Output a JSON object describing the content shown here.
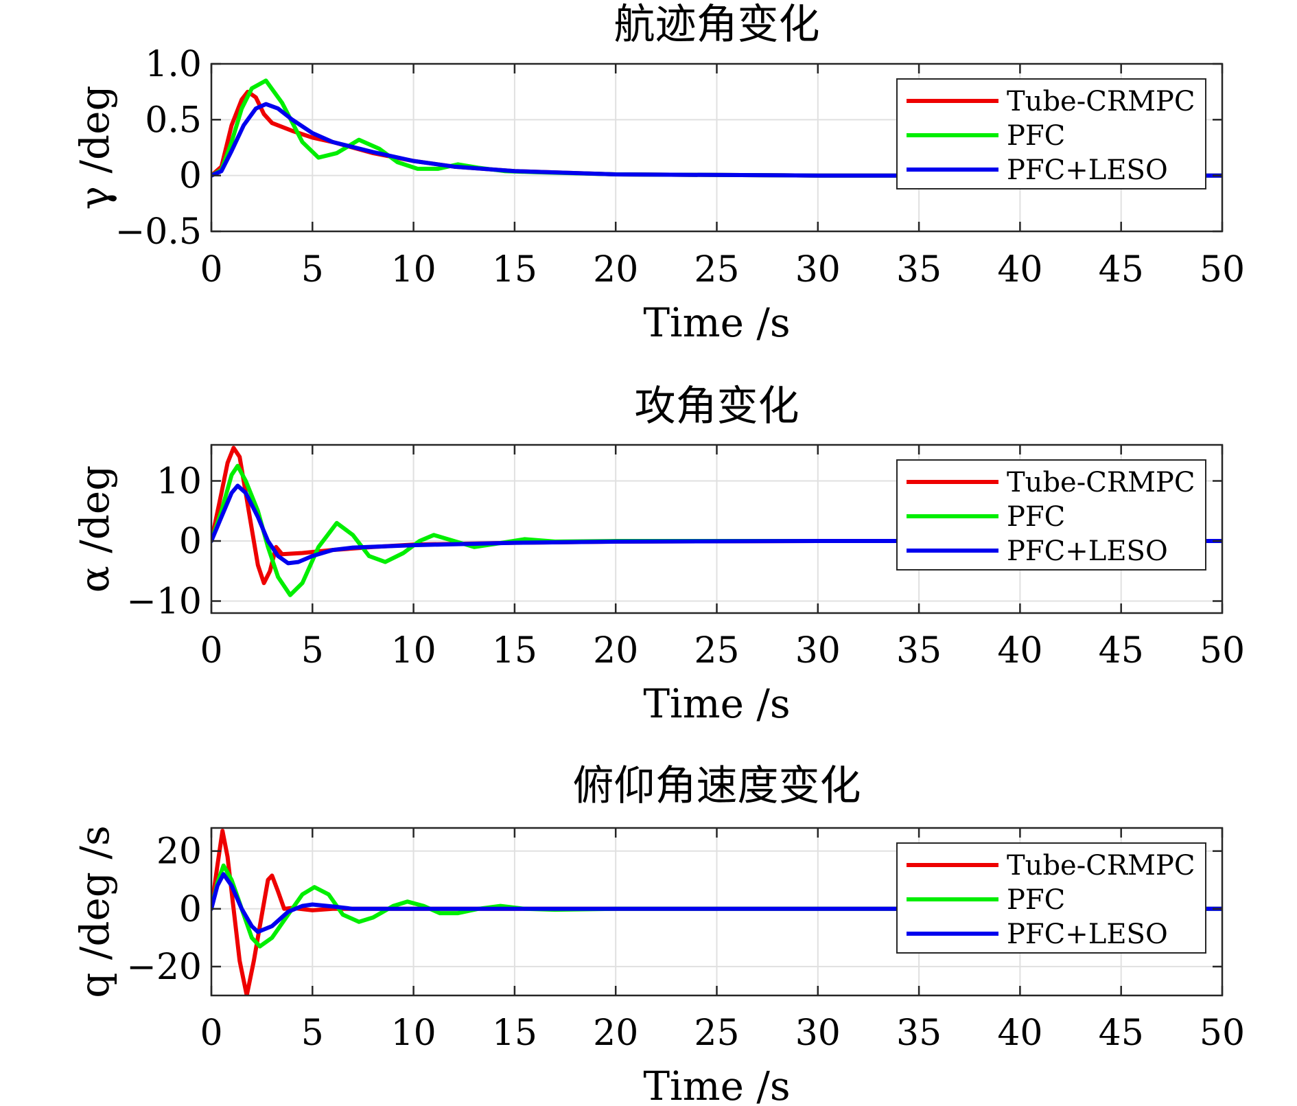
{
  "colors": {
    "Tube-CRMPC": "#ee0000",
    "PFC": "#00ee00",
    "PFC+LESO": "#0000ee"
  },
  "chart_data": [
    {
      "type": "line",
      "title": "航迹角变化",
      "xlabel": "Time /s",
      "ylabel": "γ /deg",
      "xlim": [
        0,
        50
      ],
      "ylim": [
        -0.5,
        1.0
      ],
      "xticks": [
        0,
        5,
        10,
        15,
        20,
        25,
        30,
        35,
        40,
        45,
        50
      ],
      "xtick_labels": [
        "0",
        "5",
        "10",
        "15",
        "20",
        "25",
        "30",
        "35",
        "40",
        "45",
        "50"
      ],
      "yticks": [
        -0.5,
        0,
        0.5,
        1.0
      ],
      "ytick_labels": [
        "−0.5",
        "0",
        "0.5",
        "1.0"
      ],
      "legend": [
        "Tube-CRMPC",
        "PFC",
        "PFC+LESO"
      ],
      "legend_position": "top-right",
      "series": [
        {
          "name": "Tube-CRMPC",
          "points": [
            [
              0,
              0
            ],
            [
              0.5,
              0.08
            ],
            [
              1,
              0.45
            ],
            [
              1.5,
              0.68
            ],
            [
              1.8,
              0.75
            ],
            [
              2.2,
              0.7
            ],
            [
              2.6,
              0.55
            ],
            [
              3,
              0.47
            ],
            [
              4,
              0.4
            ],
            [
              5,
              0.34
            ],
            [
              6,
              0.3
            ],
            [
              8,
              0.2
            ],
            [
              10,
              0.13
            ],
            [
              12,
              0.08
            ],
            [
              15,
              0.04
            ],
            [
              20,
              0.01
            ],
            [
              30,
              0
            ],
            [
              50,
              0
            ]
          ]
        },
        {
          "name": "PFC",
          "points": [
            [
              0,
              0
            ],
            [
              0.5,
              0.05
            ],
            [
              1,
              0.3
            ],
            [
              1.5,
              0.6
            ],
            [
              2,
              0.78
            ],
            [
              2.7,
              0.85
            ],
            [
              3.5,
              0.65
            ],
            [
              4.5,
              0.3
            ],
            [
              5.3,
              0.16
            ],
            [
              6.2,
              0.2
            ],
            [
              7.3,
              0.32
            ],
            [
              8.3,
              0.24
            ],
            [
              9.2,
              0.12
            ],
            [
              10.2,
              0.06
            ],
            [
              11.2,
              0.06
            ],
            [
              12.2,
              0.1
            ],
            [
              13.2,
              0.07
            ],
            [
              14.5,
              0.04
            ],
            [
              16,
              0.03
            ],
            [
              20,
              0.01
            ],
            [
              30,
              0
            ],
            [
              50,
              0
            ]
          ]
        },
        {
          "name": "PFC+LESO",
          "points": [
            [
              0,
              0
            ],
            [
              0.5,
              0.04
            ],
            [
              1,
              0.22
            ],
            [
              1.6,
              0.45
            ],
            [
              2.2,
              0.6
            ],
            [
              2.7,
              0.64
            ],
            [
              3.3,
              0.6
            ],
            [
              4,
              0.5
            ],
            [
              5,
              0.38
            ],
            [
              6,
              0.3
            ],
            [
              8,
              0.21
            ],
            [
              10,
              0.13
            ],
            [
              12,
              0.08
            ],
            [
              15,
              0.04
            ],
            [
              20,
              0.01
            ],
            [
              30,
              0
            ],
            [
              50,
              0
            ]
          ]
        }
      ]
    },
    {
      "type": "line",
      "title": "攻角变化",
      "xlabel": "Time /s",
      "ylabel": "α /deg",
      "xlim": [
        0,
        50
      ],
      "ylim": [
        -12,
        16
      ],
      "xticks": [
        0,
        5,
        10,
        15,
        20,
        25,
        30,
        35,
        40,
        45,
        50
      ],
      "xtick_labels": [
        "0",
        "5",
        "10",
        "15",
        "20",
        "25",
        "30",
        "35",
        "40",
        "45",
        "50"
      ],
      "yticks": [
        -10,
        0,
        10
      ],
      "ytick_labels": [
        "−10",
        "0",
        "10"
      ],
      "legend": [
        "Tube-CRMPC",
        "PFC",
        "PFC+LESO"
      ],
      "legend_position": "top-right",
      "series": [
        {
          "name": "Tube-CRMPC",
          "points": [
            [
              0,
              0
            ],
            [
              0.5,
              8
            ],
            [
              0.8,
              13
            ],
            [
              1.1,
              15.5
            ],
            [
              1.4,
              14
            ],
            [
              1.7,
              8
            ],
            [
              2,
              2
            ],
            [
              2.3,
              -4
            ],
            [
              2.6,
              -7
            ],
            [
              2.9,
              -5
            ],
            [
              3.2,
              -1
            ],
            [
              3.5,
              -2.2
            ],
            [
              4.5,
              -2
            ],
            [
              6,
              -1.5
            ],
            [
              8,
              -1
            ],
            [
              10,
              -0.6
            ],
            [
              15,
              -0.3
            ],
            [
              20,
              -0.1
            ],
            [
              30,
              0
            ],
            [
              50,
              0
            ]
          ]
        },
        {
          "name": "PFC",
          "points": [
            [
              0,
              0
            ],
            [
              0.5,
              5
            ],
            [
              1,
              11
            ],
            [
              1.3,
              12.5
            ],
            [
              1.7,
              10
            ],
            [
              2.3,
              5
            ],
            [
              2.8,
              -1
            ],
            [
              3.3,
              -6
            ],
            [
              3.9,
              -9
            ],
            [
              4.5,
              -7
            ],
            [
              5.3,
              -1
            ],
            [
              6.2,
              3
            ],
            [
              7,
              1
            ],
            [
              7.8,
              -2.5
            ],
            [
              8.6,
              -3.5
            ],
            [
              9.5,
              -2
            ],
            [
              10.3,
              0
            ],
            [
              11,
              1
            ],
            [
              12,
              0
            ],
            [
              13,
              -1
            ],
            [
              14,
              -0.5
            ],
            [
              15.5,
              0.3
            ],
            [
              17,
              -0.1
            ],
            [
              20,
              0
            ],
            [
              50,
              0
            ]
          ]
        },
        {
          "name": "PFC+LESO",
          "points": [
            [
              0,
              0
            ],
            [
              0.5,
              4
            ],
            [
              1,
              8
            ],
            [
              1.3,
              9.2
            ],
            [
              1.7,
              8
            ],
            [
              2.3,
              4
            ],
            [
              2.8,
              0
            ],
            [
              3.3,
              -2.5
            ],
            [
              3.8,
              -3.7
            ],
            [
              4.3,
              -3.5
            ],
            [
              5,
              -2.5
            ],
            [
              6,
              -1.5
            ],
            [
              7,
              -1.1
            ],
            [
              10,
              -0.7
            ],
            [
              15,
              -0.3
            ],
            [
              20,
              -0.1
            ],
            [
              30,
              0
            ],
            [
              50,
              0
            ]
          ]
        }
      ]
    },
    {
      "type": "line",
      "title": "俯仰角速度变化",
      "xlabel": "Time /s",
      "ylabel": "q /deg /s",
      "xlim": [
        0,
        50
      ],
      "ylim": [
        -30,
        28
      ],
      "xticks": [
        0,
        5,
        10,
        15,
        20,
        25,
        30,
        35,
        40,
        45,
        50
      ],
      "xtick_labels": [
        "0",
        "5",
        "10",
        "15",
        "20",
        "25",
        "30",
        "35",
        "40",
        "45",
        "50"
      ],
      "yticks": [
        -20,
        0,
        20
      ],
      "ytick_labels": [
        "−20",
        "0",
        "20"
      ],
      "legend": [
        "Tube-CRMPC",
        "PFC",
        "PFC+LESO"
      ],
      "legend_position": "top-right",
      "series": [
        {
          "name": "Tube-CRMPC",
          "points": [
            [
              0,
              0
            ],
            [
              0.3,
              15
            ],
            [
              0.55,
              27
            ],
            [
              0.8,
              18
            ],
            [
              1.1,
              0
            ],
            [
              1.4,
              -18
            ],
            [
              1.75,
              -30
            ],
            [
              2.1,
              -18
            ],
            [
              2.5,
              -2
            ],
            [
              2.8,
              10
            ],
            [
              3,
              11.5
            ],
            [
              3.3,
              6
            ],
            [
              3.6,
              0
            ],
            [
              4,
              0.3
            ],
            [
              5,
              -0.5
            ],
            [
              6,
              0
            ],
            [
              50,
              0
            ]
          ]
        },
        {
          "name": "PFC",
          "points": [
            [
              0,
              0
            ],
            [
              0.3,
              9
            ],
            [
              0.6,
              15
            ],
            [
              1,
              10
            ],
            [
              1.5,
              0
            ],
            [
              2,
              -10
            ],
            [
              2.4,
              -13
            ],
            [
              3,
              -10
            ],
            [
              3.8,
              -2
            ],
            [
              4.5,
              5
            ],
            [
              5.1,
              7.5
            ],
            [
              5.8,
              5
            ],
            [
              6.5,
              -2
            ],
            [
              7.3,
              -4.5
            ],
            [
              8,
              -3
            ],
            [
              9,
              1
            ],
            [
              9.7,
              2.5
            ],
            [
              10.5,
              1
            ],
            [
              11.3,
              -1.5
            ],
            [
              12.2,
              -1.5
            ],
            [
              13.2,
              0
            ],
            [
              14.3,
              1
            ],
            [
              15.5,
              0
            ],
            [
              17,
              -0.3
            ],
            [
              20,
              0
            ],
            [
              50,
              0
            ]
          ]
        },
        {
          "name": "PFC+LESO",
          "points": [
            [
              0,
              0
            ],
            [
              0.3,
              8
            ],
            [
              0.6,
              12
            ],
            [
              1,
              8
            ],
            [
              1.5,
              0
            ],
            [
              2,
              -6
            ],
            [
              2.3,
              -8
            ],
            [
              3,
              -6
            ],
            [
              3.8,
              -1
            ],
            [
              4.5,
              1
            ],
            [
              5,
              1.5
            ],
            [
              6,
              0.8
            ],
            [
              7,
              0
            ],
            [
              10,
              0
            ],
            [
              50,
              0
            ]
          ]
        }
      ]
    }
  ]
}
